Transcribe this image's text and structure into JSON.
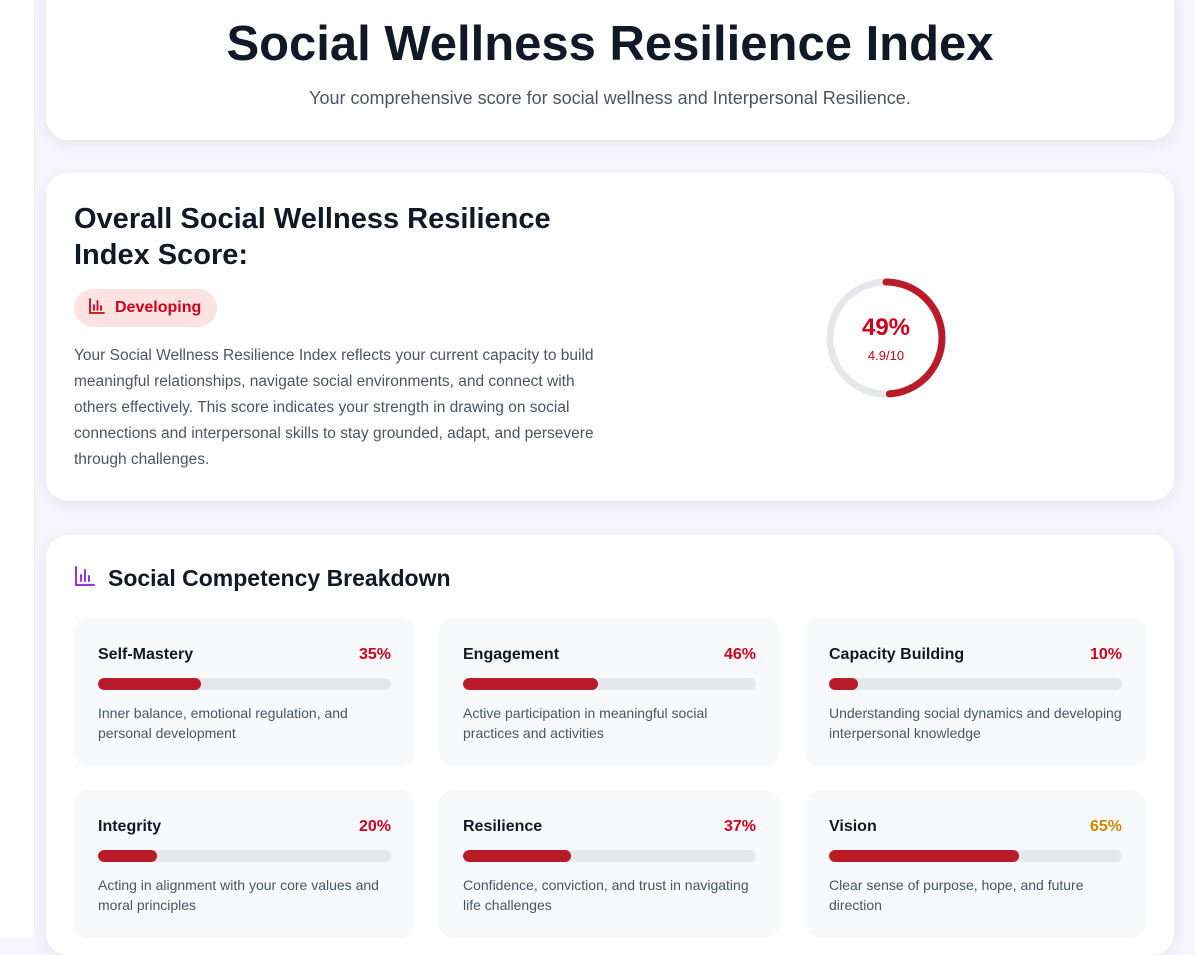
{
  "header": {
    "title": "Social Wellness Resilience Index",
    "subtitle": "Your comprehensive score for social wellness and Interpersonal Resilience."
  },
  "overall": {
    "title": "Overall Social Wellness Resilience Index Score:",
    "badge_label": "Developing",
    "badge_icon": "bar-chart-icon",
    "description": "Your Social Wellness Resilience Index reflects your current capacity to build meaningful relationships, navigate social environments, and connect with others effectively. This score indicates your strength in drawing on social connections and interpersonal skills to stay grounded, adapt, and persevere through challenges.",
    "percent_label": "49%",
    "percent_value": 49,
    "score_label": "4.9/10",
    "gauge_color": "#b91c28",
    "gauge_track_color": "#e5e7eb"
  },
  "breakdown": {
    "title": "Social Competency Breakdown",
    "icon": "bar-chart-icon",
    "icon_color": "#9333ea",
    "items": [
      {
        "name": "Self-Mastery",
        "percent_label": "35%",
        "value": 35,
        "pct_color": "#d0021b",
        "description": "Inner balance, emotional regulation, and personal development"
      },
      {
        "name": "Engagement",
        "percent_label": "46%",
        "value": 46,
        "pct_color": "#d0021b",
        "description": "Active participation in meaningful social practices and activities"
      },
      {
        "name": "Capacity Building",
        "percent_label": "10%",
        "value": 10,
        "pct_color": "#d0021b",
        "description": "Understanding social dynamics and developing interpersonal knowledge"
      },
      {
        "name": "Integrity",
        "percent_label": "20%",
        "value": 20,
        "pct_color": "#d0021b",
        "description": "Acting in alignment with your core values and moral principles"
      },
      {
        "name": "Resilience",
        "percent_label": "37%",
        "value": 37,
        "pct_color": "#d0021b",
        "description": "Confidence, conviction, and trust in navigating life challenges"
      },
      {
        "name": "Vision",
        "percent_label": "65%",
        "value": 65,
        "pct_color": "#ca8a04",
        "description": "Clear sense of purpose, hope, and future direction"
      }
    ]
  }
}
